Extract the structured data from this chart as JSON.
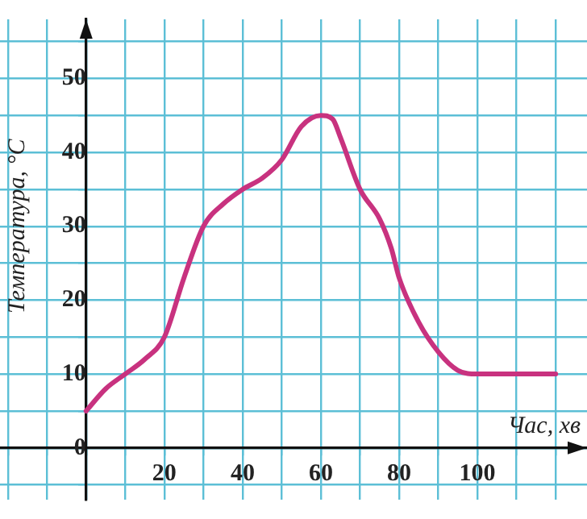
{
  "chart_data": {
    "type": "line",
    "xlabel": "Час, хв",
    "ylabel": "Температура, °C",
    "x": [
      0,
      5,
      10,
      15,
      20,
      25,
      30,
      35,
      40,
      45,
      50,
      55,
      60,
      63,
      65,
      70,
      75,
      78,
      80,
      85,
      90,
      95,
      100,
      110,
      120
    ],
    "series": [
      {
        "color": "#c8327f",
        "values": [
          5,
          8,
          10,
          12,
          15,
          23,
          30,
          33,
          35,
          36.5,
          39,
          43.5,
          45,
          44.5,
          42,
          35,
          31,
          27,
          23,
          17,
          13,
          10.5,
          10,
          10,
          10
        ]
      }
    ],
    "xlim": [
      -22,
      128
    ],
    "ylim": [
      -7,
      58
    ],
    "xticks": [
      {
        "value": -20,
        "label": null
      },
      {
        "value": -10,
        "label": null
      },
      {
        "value": 0,
        "label": null
      },
      {
        "value": 10,
        "label": null
      },
      20,
      {
        "value": 30,
        "label": null
      },
      40,
      {
        "value": 50,
        "label": null
      },
      60,
      {
        "value": 70,
        "label": null
      },
      80,
      {
        "value": 90,
        "label": null
      },
      100,
      {
        "value": 110,
        "label": null
      },
      {
        "value": 120,
        "label": null
      }
    ],
    "yticks": [
      {
        "value": -5,
        "label": null
      },
      0,
      {
        "value": 5,
        "label": null
      },
      10,
      {
        "value": 15,
        "label": null
      },
      20,
      {
        "value": 25,
        "label": null
      },
      30,
      {
        "value": 35,
        "label": null
      },
      40,
      {
        "value": 45,
        "label": null
      },
      50,
      {
        "value": 55,
        "label": null
      }
    ],
    "grid": true,
    "legend": false,
    "marker": "none",
    "line_style": "solid"
  }
}
